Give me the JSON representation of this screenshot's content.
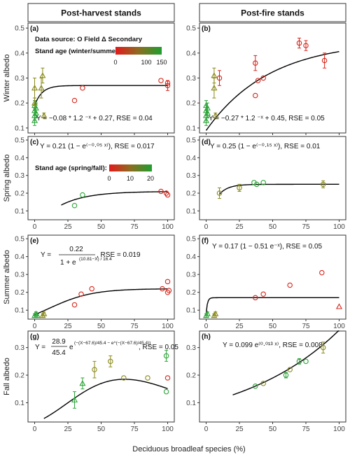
{
  "headers": {
    "left": "Post-harvest stands",
    "right": "Post-fire stands"
  },
  "x_axis_label": "Deciduous broadleaf species (%)",
  "legend_top": {
    "data_source": "Data source: O Field Δ Secondary",
    "stand_age_label": "Stand age (winter/summer):",
    "ticks": [
      "0",
      "100",
      "150"
    ]
  },
  "legend_spring": {
    "stand_age_label": "Stand age (spring/fall):",
    "ticks": [
      "0",
      "10",
      "20"
    ]
  },
  "colors": {
    "young": "#d7251b",
    "mid": "#8a8a1a",
    "old": "#2ea43a",
    "curve": "#000000"
  },
  "chart_data": [
    {
      "panel": "(a)",
      "type": "scatter",
      "ylabel": "Winter albedo",
      "equation": "Y = −0.08 * 1.2 ⁻ˣ + 0.27, RSE = 0.04",
      "xlim": [
        -5,
        105
      ],
      "ylim": [
        0.08,
        0.52
      ],
      "xticks": [
        0,
        25,
        50,
        75,
        100
      ],
      "yticks": [
        0.1,
        0.2,
        0.3,
        0.4,
        0.5
      ],
      "curve": {
        "kind": "exp",
        "a": -0.08,
        "b": 1.2,
        "c": 0.27,
        "x0": 0,
        "x1": 100
      },
      "points": [
        {
          "x": 0,
          "y": 0.13,
          "m": "t",
          "c": "old",
          "e": 0.02
        },
        {
          "x": 0,
          "y": 0.15,
          "m": "t",
          "c": "old",
          "e": 0.02
        },
        {
          "x": 0,
          "y": 0.17,
          "m": "t",
          "c": "old",
          "e": 0.02
        },
        {
          "x": 0,
          "y": 0.19,
          "m": "t",
          "c": "old",
          "e": 0.02
        },
        {
          "x": 0,
          "y": 0.2,
          "m": "t",
          "c": "mid",
          "e": 0.02
        },
        {
          "x": 0,
          "y": 0.26,
          "m": "t",
          "c": "mid",
          "e": 0.04
        },
        {
          "x": 1,
          "y": 0.16,
          "m": "t",
          "c": "old",
          "e": 0.02
        },
        {
          "x": 1,
          "y": 0.18,
          "m": "t",
          "c": "old",
          "e": 0.02
        },
        {
          "x": 5,
          "y": 0.26,
          "m": "t",
          "c": "mid",
          "e": 0.04
        },
        {
          "x": 6,
          "y": 0.31,
          "m": "t",
          "c": "mid",
          "e": 0.03
        },
        {
          "x": 7,
          "y": 0.15,
          "m": "t",
          "c": "mid",
          "e": 0.01
        },
        {
          "x": 30,
          "y": 0.21,
          "m": "o",
          "c": "young",
          "e": 0
        },
        {
          "x": 36,
          "y": 0.26,
          "m": "o",
          "c": "young",
          "e": 0
        },
        {
          "x": 95,
          "y": 0.29,
          "m": "o",
          "c": "young",
          "e": 0
        },
        {
          "x": 100,
          "y": 0.27,
          "m": "o",
          "c": "young",
          "e": 0.02
        },
        {
          "x": 100,
          "y": 0.28,
          "m": "o",
          "c": "young",
          "e": 0
        }
      ]
    },
    {
      "panel": "(b)",
      "type": "scatter",
      "ylabel": "",
      "equation": "Y = −0.27 * 1.2 ⁻ˣ + 0.45, RSE = 0.05",
      "xlim": [
        -5,
        105
      ],
      "ylim": [
        0.08,
        0.52
      ],
      "xticks": [
        0,
        25,
        50,
        75,
        100
      ],
      "yticks": [
        0.1,
        0.2,
        0.3,
        0.4,
        0.5
      ],
      "curve": {
        "kind": "satexp",
        "a": 0.09,
        "b": 0.45,
        "k": 0.021,
        "x0": 0,
        "x1": 100
      },
      "points": [
        {
          "x": 0,
          "y": 0.13,
          "m": "t",
          "c": "old",
          "e": 0.02
        },
        {
          "x": 0,
          "y": 0.15,
          "m": "t",
          "c": "old",
          "e": 0.02
        },
        {
          "x": 0,
          "y": 0.17,
          "m": "t",
          "c": "old",
          "e": 0.02
        },
        {
          "x": 0,
          "y": 0.19,
          "m": "t",
          "c": "old",
          "e": 0.02
        },
        {
          "x": 1,
          "y": 0.16,
          "m": "t",
          "c": "old",
          "e": 0.02
        },
        {
          "x": 1,
          "y": 0.18,
          "m": "t",
          "c": "old",
          "e": 0.02
        },
        {
          "x": 6,
          "y": 0.26,
          "m": "t",
          "c": "mid",
          "e": 0.04
        },
        {
          "x": 6,
          "y": 0.31,
          "m": "t",
          "c": "mid",
          "e": 0.03
        },
        {
          "x": 7,
          "y": 0.15,
          "m": "t",
          "c": "mid",
          "e": 0.01
        },
        {
          "x": 10,
          "y": 0.3,
          "m": "o",
          "c": "young",
          "e": 0.03
        },
        {
          "x": 37,
          "y": 0.36,
          "m": "o",
          "c": "young",
          "e": 0.03
        },
        {
          "x": 37,
          "y": 0.23,
          "m": "o",
          "c": "young",
          "e": 0
        },
        {
          "x": 39,
          "y": 0.29,
          "m": "o",
          "c": "young",
          "e": 0
        },
        {
          "x": 43,
          "y": 0.3,
          "m": "o",
          "c": "young",
          "e": 0
        },
        {
          "x": 70,
          "y": 0.44,
          "m": "o",
          "c": "young",
          "e": 0.02
        },
        {
          "x": 75,
          "y": 0.43,
          "m": "o",
          "c": "young",
          "e": 0.02
        },
        {
          "x": 89,
          "y": 0.37,
          "m": "o",
          "c": "young",
          "e": 0.03
        }
      ]
    },
    {
      "panel": "(c)",
      "type": "scatter",
      "ylabel": "Spring albedo",
      "equation": "Y = 0.21 (1 − e⁽⁻⁰·⁰⁵ ˣ⁾), RSE = 0.017",
      "xlim": [
        -5,
        105
      ],
      "ylim": [
        0.05,
        0.52
      ],
      "xticks": [
        0,
        25,
        50,
        75,
        100
      ],
      "yticks": [
        0.1,
        0.2,
        0.3,
        0.4,
        0.5
      ],
      "curve": {
        "kind": "sat",
        "a": 0.21,
        "k": 0.05,
        "x0": 20,
        "x1": 100
      },
      "points": [
        {
          "x": 30,
          "y": 0.13,
          "m": "o",
          "c": "old",
          "e": 0
        },
        {
          "x": 36,
          "y": 0.19,
          "m": "o",
          "c": "old",
          "e": 0
        },
        {
          "x": 95,
          "y": 0.21,
          "m": "o",
          "c": "young",
          "e": 0
        },
        {
          "x": 99,
          "y": 0.2,
          "m": "o",
          "c": "young",
          "e": 0
        },
        {
          "x": 100,
          "y": 0.19,
          "m": "o",
          "c": "young",
          "e": 0
        }
      ]
    },
    {
      "panel": "(d)",
      "type": "scatter",
      "ylabel": "",
      "equation": "Y = 0.25 (1 − e⁽⁻⁰·¹⁵ ˣ⁾), RSE = 0.01",
      "xlim": [
        -5,
        105
      ],
      "ylim": [
        0.05,
        0.52
      ],
      "xticks": [
        0,
        25,
        50,
        75,
        100
      ],
      "yticks": [
        0.1,
        0.2,
        0.3,
        0.4,
        0.5
      ],
      "curve": {
        "kind": "sat",
        "a": 0.25,
        "k": 0.15,
        "x0": 10,
        "x1": 100
      },
      "points": [
        {
          "x": 10,
          "y": 0.2,
          "m": "o",
          "c": "mid",
          "e": 0.03
        },
        {
          "x": 25,
          "y": 0.23,
          "m": "o",
          "c": "mid",
          "e": 0.02
        },
        {
          "x": 36,
          "y": 0.26,
          "m": "o",
          "c": "old",
          "e": 0
        },
        {
          "x": 38,
          "y": 0.25,
          "m": "o",
          "c": "old",
          "e": 0
        },
        {
          "x": 43,
          "y": 0.26,
          "m": "o",
          "c": "old",
          "e": 0
        },
        {
          "x": 88,
          "y": 0.25,
          "m": "o",
          "c": "mid",
          "e": 0.02
        }
      ]
    },
    {
      "panel": "(e)",
      "type": "scatter",
      "ylabel": "Summer albedo",
      "equation_parts": [
        "Y =",
        "0.22",
        "1 + e",
        "(10.81−X) / 16.4",
        ", RSE = 0.019"
      ],
      "xlim": [
        -5,
        105
      ],
      "ylim": [
        0.05,
        0.52
      ],
      "xticks": [
        0,
        25,
        50,
        75,
        100
      ],
      "yticks": [
        0.1,
        0.2,
        0.3,
        0.4,
        0.5
      ],
      "curve": {
        "kind": "logistic",
        "a": 0.22,
        "m": 10.81,
        "s": 16.4,
        "x0": 0,
        "x1": 100
      },
      "points": [
        {
          "x": 0,
          "y": 0.07,
          "m": "t",
          "c": "old",
          "e": 0.01
        },
        {
          "x": 1,
          "y": 0.08,
          "m": "t",
          "c": "old",
          "e": 0.01
        },
        {
          "x": 2,
          "y": 0.07,
          "m": "t",
          "c": "old",
          "e": 0.01
        },
        {
          "x": 6,
          "y": 0.07,
          "m": "t",
          "c": "mid",
          "e": 0.01
        },
        {
          "x": 7,
          "y": 0.08,
          "m": "t",
          "c": "mid",
          "e": 0.01
        },
        {
          "x": 30,
          "y": 0.13,
          "m": "o",
          "c": "young",
          "e": 0
        },
        {
          "x": 35,
          "y": 0.19,
          "m": "o",
          "c": "young",
          "e": 0
        },
        {
          "x": 43,
          "y": 0.22,
          "m": "o",
          "c": "young",
          "e": 0
        },
        {
          "x": 96,
          "y": 0.22,
          "m": "o",
          "c": "young",
          "e": 0
        },
        {
          "x": 100,
          "y": 0.2,
          "m": "o",
          "c": "young",
          "e": 0
        },
        {
          "x": 100,
          "y": 0.26,
          "m": "o",
          "c": "young",
          "e": 0
        },
        {
          "x": 101,
          "y": 0.21,
          "m": "o",
          "c": "young",
          "e": 0
        }
      ]
    },
    {
      "panel": "(f)",
      "type": "scatter",
      "ylabel": "",
      "equation": "Y = 0.17 (1 − 0.51 e⁻ˣ), RSE = 0.05",
      "xlim": [
        -5,
        105
      ],
      "ylim": [
        0.05,
        0.52
      ],
      "xticks": [
        0,
        25,
        50,
        75,
        100
      ],
      "yticks": [
        0.1,
        0.2,
        0.3,
        0.4,
        0.5
      ],
      "curve": {
        "kind": "fsat",
        "a": 0.17,
        "b": 0.51,
        "x0": 0,
        "x1": 100
      },
      "points": [
        {
          "x": 0,
          "y": 0.07,
          "m": "t",
          "c": "old",
          "e": 0.01
        },
        {
          "x": 1,
          "y": 0.08,
          "m": "t",
          "c": "old",
          "e": 0.01
        },
        {
          "x": 6,
          "y": 0.07,
          "m": "t",
          "c": "mid",
          "e": 0.01
        },
        {
          "x": 7,
          "y": 0.08,
          "m": "t",
          "c": "mid",
          "e": 0.01
        },
        {
          "x": 37,
          "y": 0.17,
          "m": "o",
          "c": "young",
          "e": 0
        },
        {
          "x": 43,
          "y": 0.19,
          "m": "o",
          "c": "young",
          "e": 0
        },
        {
          "x": 63,
          "y": 0.24,
          "m": "o",
          "c": "young",
          "e": 0
        },
        {
          "x": 87,
          "y": 0.31,
          "m": "o",
          "c": "young",
          "e": 0
        },
        {
          "x": 100,
          "y": 0.12,
          "m": "t",
          "c": "young",
          "e": 0
        }
      ]
    },
    {
      "panel": "(g)",
      "type": "scatter",
      "ylabel": "Fall albedo",
      "equation_parts": [
        "Y =",
        "28.9",
        "45.4",
        "e",
        "(−(X−67.6)/45.4 − e^(−(X−67.6)/45.4))",
        ", RSE = 0.05"
      ],
      "xlim": [
        -5,
        105
      ],
      "ylim": [
        0.03,
        0.36
      ],
      "xticks": [
        0,
        25,
        50,
        75,
        100
      ],
      "yticks": [
        0.1,
        0.2,
        0.3
      ],
      "curve": {
        "kind": "gumbel",
        "a": 28.9,
        "m": 67.6,
        "s": 45.4,
        "x0": 7,
        "x1": 100
      },
      "points": [
        {
          "x": 30,
          "y": 0.11,
          "m": "t",
          "c": "old",
          "e": 0.03
        },
        {
          "x": 36,
          "y": 0.17,
          "m": "t",
          "c": "old",
          "e": 0.02
        },
        {
          "x": 45,
          "y": 0.22,
          "m": "o",
          "c": "mid",
          "e": 0.03
        },
        {
          "x": 57,
          "y": 0.25,
          "m": "o",
          "c": "mid",
          "e": 0.02
        },
        {
          "x": 67,
          "y": 0.19,
          "m": "o",
          "c": "mid",
          "e": 0
        },
        {
          "x": 85,
          "y": 0.19,
          "m": "o",
          "c": "mid",
          "e": 0
        },
        {
          "x": 99,
          "y": 0.27,
          "m": "o",
          "c": "old",
          "e": 0.02
        },
        {
          "x": 99,
          "y": 0.14,
          "m": "o",
          "c": "old",
          "e": 0
        },
        {
          "x": 100,
          "y": 0.19,
          "m": "o",
          "c": "young",
          "e": 0
        }
      ]
    },
    {
      "panel": "(h)",
      "type": "scatter",
      "ylabel": "",
      "equation": "Y = 0.099 e⁽⁰·⁰¹³ ˣ⁾, RSE = 0.008",
      "xlim": [
        -5,
        105
      ],
      "ylim": [
        0.03,
        0.36
      ],
      "xticks": [
        0,
        25,
        50,
        75,
        100
      ],
      "yticks": [
        0.1,
        0.2,
        0.3
      ],
      "curve": {
        "kind": "expgrow",
        "a": 0.099,
        "k": 0.013,
        "x0": 20,
        "x1": 100
      },
      "points": [
        {
          "x": 37,
          "y": 0.16,
          "m": "o",
          "c": "old",
          "e": 0
        },
        {
          "x": 43,
          "y": 0.17,
          "m": "o",
          "c": "mid",
          "e": 0
        },
        {
          "x": 60,
          "y": 0.2,
          "m": "o",
          "c": "old",
          "e": 0.01
        },
        {
          "x": 63,
          "y": 0.22,
          "m": "o",
          "c": "mid",
          "e": 0
        },
        {
          "x": 70,
          "y": 0.25,
          "m": "o",
          "c": "old",
          "e": 0.01
        },
        {
          "x": 75,
          "y": 0.25,
          "m": "o",
          "c": "old",
          "e": 0
        },
        {
          "x": 88,
          "y": 0.3,
          "m": "o",
          "c": "mid",
          "e": 0.02
        }
      ]
    }
  ]
}
